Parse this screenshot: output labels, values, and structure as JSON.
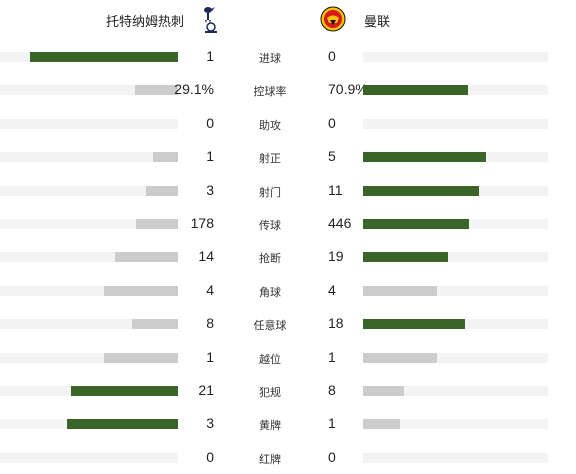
{
  "home_team": {
    "name": "托特纳姆热刺",
    "logo": "tottenham-crest-icon"
  },
  "away_team": {
    "name": "曼联",
    "logo": "manchester-united-crest-icon"
  },
  "colors": {
    "winner_bar": "#3a6428",
    "loser_bar": "#cccccc",
    "track": "#f3f3f3"
  },
  "stats": [
    {
      "label": "进球",
      "home": "1",
      "away": "0",
      "home_share": 1,
      "away_share": 0,
      "leader": "home"
    },
    {
      "label": "控球率",
      "home": "29.1%",
      "away": "70.9%",
      "home_share": 0.291,
      "away_share": 0.709,
      "leader": "away"
    },
    {
      "label": "助攻",
      "home": "0",
      "away": "0",
      "home_share": 0,
      "away_share": 0,
      "leader": "none"
    },
    {
      "label": "射正",
      "home": "1",
      "away": "5",
      "home_share": 0.167,
      "away_share": 0.833,
      "leader": "away"
    },
    {
      "label": "射门",
      "home": "3",
      "away": "11",
      "home_share": 0.214,
      "away_share": 0.786,
      "leader": "away"
    },
    {
      "label": "传球",
      "home": "178",
      "away": "446",
      "home_share": 0.285,
      "away_share": 0.715,
      "leader": "away"
    },
    {
      "label": "抢断",
      "home": "14",
      "away": "19",
      "home_share": 0.424,
      "away_share": 0.576,
      "leader": "away"
    },
    {
      "label": "角球",
      "home": "4",
      "away": "4",
      "home_share": 0.5,
      "away_share": 0.5,
      "leader": "none"
    },
    {
      "label": "任意球",
      "home": "8",
      "away": "18",
      "home_share": 0.308,
      "away_share": 0.692,
      "leader": "away"
    },
    {
      "label": "越位",
      "home": "1",
      "away": "1",
      "home_share": 0.5,
      "away_share": 0.5,
      "leader": "none"
    },
    {
      "label": "犯规",
      "home": "21",
      "away": "8",
      "home_share": 0.724,
      "away_share": 0.276,
      "leader": "home"
    },
    {
      "label": "黄牌",
      "home": "3",
      "away": "1",
      "home_share": 0.75,
      "away_share": 0.25,
      "leader": "home"
    },
    {
      "label": "红牌",
      "home": "0",
      "away": "0",
      "home_share": 0,
      "away_share": 0,
      "leader": "none"
    }
  ]
}
